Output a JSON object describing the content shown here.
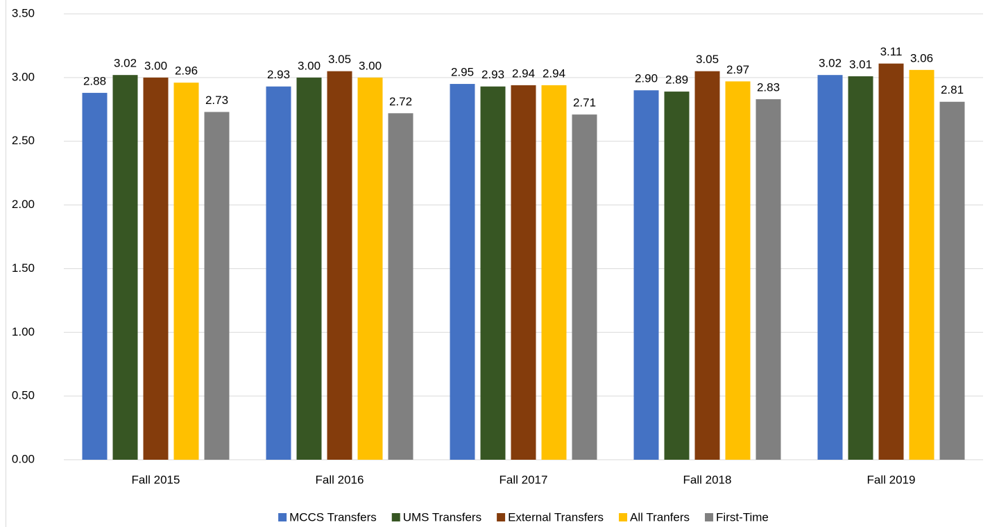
{
  "chart_data": {
    "type": "bar",
    "categories": [
      "Fall 2015",
      "Fall 2016",
      "Fall 2017",
      "Fall 2018",
      "Fall 2019"
    ],
    "series": [
      {
        "name": "MCCS Transfers",
        "color": "#4472c4",
        "values": [
          2.88,
          2.93,
          2.95,
          2.9,
          3.02
        ],
        "value_labels": [
          "2.88",
          "2.93",
          "2.95",
          "2.90",
          "3.02"
        ]
      },
      {
        "name": "UMS Transfers",
        "color": "#375623",
        "values": [
          3.02,
          3.0,
          2.93,
          2.89,
          3.01
        ],
        "value_labels": [
          "3.02",
          "3.00",
          "2.93",
          "2.89",
          "3.01"
        ]
      },
      {
        "name": "External Transfers",
        "color": "#843c0c",
        "values": [
          3.0,
          3.05,
          2.94,
          3.05,
          3.11
        ],
        "value_labels": [
          "3.00",
          "3.05",
          "2.94",
          "3.05",
          "3.11"
        ]
      },
      {
        "name": "All Tranfers",
        "color": "#ffc000",
        "values": [
          2.96,
          3.0,
          2.94,
          2.97,
          3.06
        ],
        "value_labels": [
          "2.96",
          "3.00",
          "2.94",
          "2.97",
          "3.06"
        ]
      },
      {
        "name": "First-Time",
        "color": "#808080",
        "values": [
          2.73,
          2.72,
          2.71,
          2.83,
          2.81
        ],
        "value_labels": [
          "2.73",
          "2.72",
          "2.71",
          "2.83",
          "2.81"
        ]
      }
    ],
    "ylim": [
      0,
      3.5
    ],
    "yticks": [
      {
        "value": 0,
        "label": "0.00"
      },
      {
        "value": 0.5,
        "label": "0.50"
      },
      {
        "value": 1,
        "label": "1.00"
      },
      {
        "value": 1.5,
        "label": "1.50"
      },
      {
        "value": 2,
        "label": "2.00"
      },
      {
        "value": 2.5,
        "label": "2.50"
      },
      {
        "value": 3,
        "label": "3.00"
      },
      {
        "value": 3.5,
        "label": "3.50"
      }
    ],
    "grid": true,
    "legend": "bottom"
  }
}
